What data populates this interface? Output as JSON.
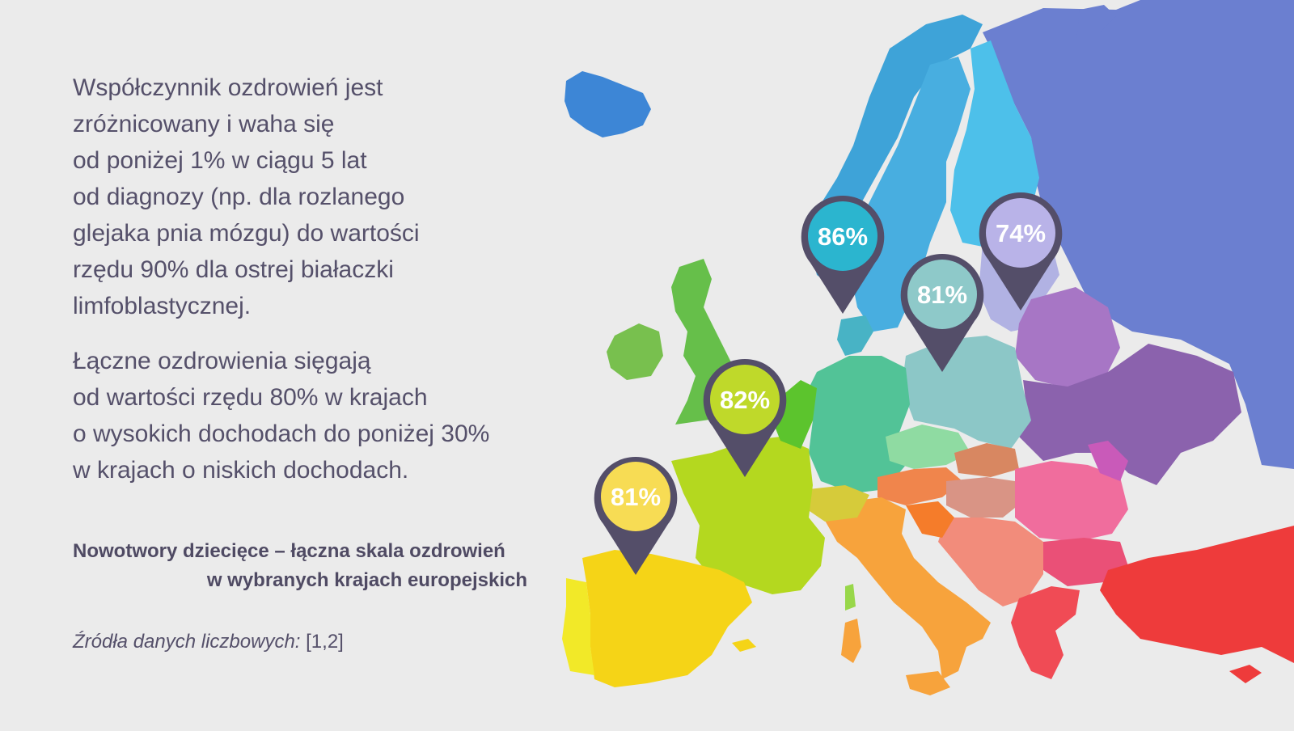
{
  "paragraphs": [
    {
      "lines": [
        "Współczynnik ozdrowień jest",
        "zróżnicowany i waha się",
        "od poniżej 1% w ciągu 5 lat",
        "od diagnozy (np. dla rozlanego",
        "glejaka pnia mózgu) do wartości",
        "rzędu 90% dla ostrej białaczki",
        "limfoblastycznej."
      ]
    },
    {
      "lines": [
        "Łączne ozdrowienia sięgają",
        "od wartości rzędu 80% w krajach",
        "o wysokich dochodach do poniżej 30%",
        "w krajach o niskich dochodach."
      ]
    }
  ],
  "caption": {
    "line1": "Nowotwory dziecięce – łączna skala ozdrowień",
    "line2": "w wybranych krajach europejskich"
  },
  "sources": {
    "label": "Źródła danych liczbowych:",
    "refs": "[1,2]"
  },
  "pins": [
    {
      "value": "86%",
      "fill": "#2bb5cf"
    },
    {
      "value": "74%",
      "fill": "#b9b3e8"
    },
    {
      "value": "81%",
      "fill": "#8ec9c9"
    },
    {
      "value": "82%",
      "fill": "#bfd92a"
    },
    {
      "value": "81%",
      "fill": "#f7dc54"
    }
  ],
  "colors": {
    "text": "#55506a",
    "pin_outline": "#544e69",
    "background": "#ebebeb"
  }
}
